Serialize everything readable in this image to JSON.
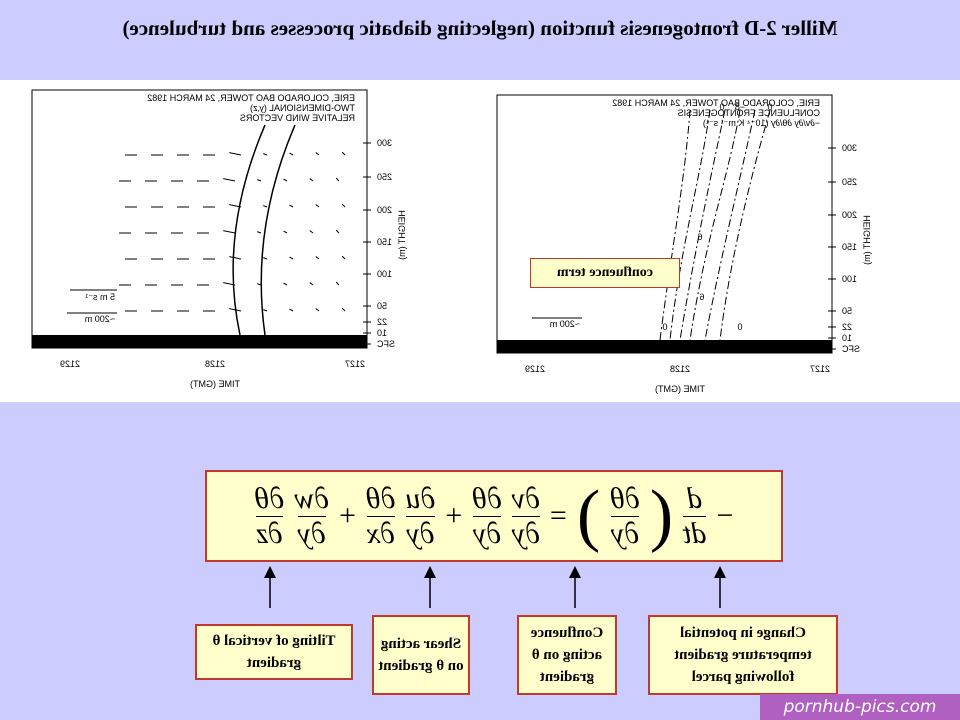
{
  "header": {
    "title": "Miller 2-D frontogenesis function (neglecting diabatic processes and turbulence)"
  },
  "plots": [
    {
      "lines": [
        "ERIE, COLORADO BAO TOWER, 24 MARCH 1982",
        "CONFLUENCE FRONTOGENESIS",
        "−∂v/∂y ∂θ/∂y (10⁻⁴ K m⁻¹ s⁻¹)"
      ],
      "scale": "~200 m",
      "height_ticks": [
        "300",
        "250",
        "200",
        "150",
        "100",
        "50",
        "22",
        "10",
        "SFC"
      ],
      "axis_label": "HEIGHT (m)",
      "time_ticks": [
        "2127",
        "2128",
        "2129"
      ],
      "time_label": "TIME (GMT)",
      "contour_labels": [
        "0",
        "−8",
        "0",
        "6",
        "6",
        "0",
        "0"
      ],
      "annotation": "confluence term"
    },
    {
      "lines": [
        "ERIE, COLORADO BAO TOWER, 24 MARCH 1982",
        "TWO-DIMENSIONAL (y,z)",
        "RELATIVE WIND VECTORS"
      ],
      "scale": "~200 m",
      "speed": "5 m s⁻¹",
      "height_ticks": [
        "300",
        "250",
        "200",
        "150",
        "100",
        "50",
        "22",
        "10",
        "SFC"
      ],
      "axis_label": "HEIGHT (m)",
      "time_ticks": [
        "2127",
        "2128",
        "2129"
      ],
      "time_label": "TIME (GMT)"
    }
  ],
  "equation": [
    {
      "op": "−"
    },
    {
      "num": "d",
      "den": "dt"
    },
    {
      "op": "("
    },
    {
      "num": "∂θ",
      "den": "∂y"
    },
    {
      "op": ")"
    },
    {
      "op": "="
    },
    {
      "num": "∂v",
      "den": "∂y"
    },
    {
      "num": "∂θ",
      "den": "∂y"
    },
    {
      "op": "+"
    },
    {
      "num": "∂u",
      "den": "∂y"
    },
    {
      "num": "∂θ",
      "den": "∂x"
    },
    {
      "op": "+"
    },
    {
      "num": "∂w",
      "den": "∂y"
    },
    {
      "num": "∂θ",
      "den": "∂z"
    }
  ],
  "labels": [
    "Change in potential temperature gradient following parcel",
    "Confluence acting on θ gradient",
    "Shear acting on θ gradient",
    "Tilting of vertical θ gradient"
  ],
  "watermark": "pornhub-pics.com"
}
